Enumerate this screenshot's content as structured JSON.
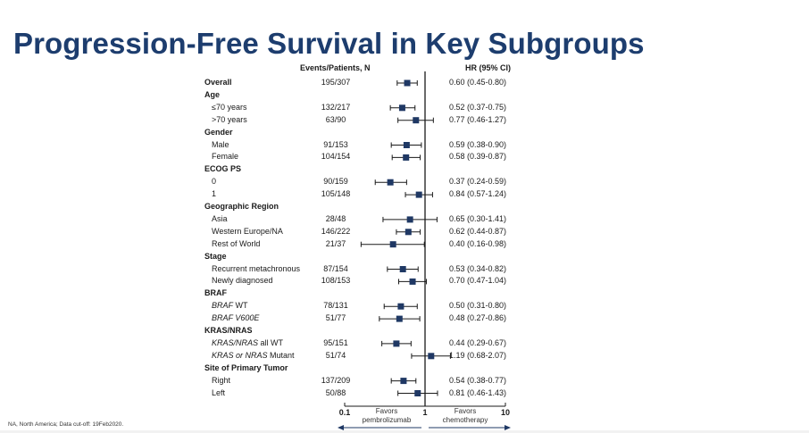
{
  "title": "Progression-Free Survival in Key Subgroups",
  "columns": {
    "events_header": "Events/Patients, N",
    "hr_header": "HR (95%  CI)"
  },
  "footnote": "NA, North America; Data cut-off:  19Feb2020.",
  "colors": {
    "title": "#1d3d6e",
    "marker": "#1f3864",
    "arrow": "#1f3864"
  },
  "chart_data": {
    "type": "forest",
    "x_scale": "log",
    "xlim": [
      0.1,
      10
    ],
    "x_ticks": [
      "0.1",
      "1",
      "10"
    ],
    "reference_line": 1,
    "favors_left": "Favors\npembrolizumab",
    "favors_right": "Favors\nchemotherapy",
    "rows": [
      {
        "kind": "item",
        "parts": [
          {
            "t": "Overall"
          }
        ],
        "bold": true,
        "events": "195/307",
        "hr": 0.6,
        "lo": 0.45,
        "hi": 0.8,
        "hr_text": "0.60 (0.45-0.80)"
      },
      {
        "kind": "group",
        "parts": [
          {
            "t": "Age"
          }
        ]
      },
      {
        "kind": "item",
        "parts": [
          {
            "t": "≤70 years"
          }
        ],
        "events": "132/217",
        "hr": 0.52,
        "lo": 0.37,
        "hi": 0.75,
        "hr_text": "0.52 (0.37-0.75)"
      },
      {
        "kind": "item",
        "parts": [
          {
            "t": ">70 years"
          }
        ],
        "events": "63/90",
        "hr": 0.77,
        "lo": 0.46,
        "hi": 1.27,
        "hr_text": "0.77 (0.46-1.27)"
      },
      {
        "kind": "group",
        "parts": [
          {
            "t": "Gender"
          }
        ]
      },
      {
        "kind": "item",
        "parts": [
          {
            "t": "Male"
          }
        ],
        "events": "91/153",
        "hr": 0.59,
        "lo": 0.38,
        "hi": 0.9,
        "hr_text": "0.59 (0.38-0.90)"
      },
      {
        "kind": "item",
        "parts": [
          {
            "t": "Female"
          }
        ],
        "events": "104/154",
        "hr": 0.58,
        "lo": 0.39,
        "hi": 0.87,
        "hr_text": "0.58 (0.39-0.87)"
      },
      {
        "kind": "group",
        "parts": [
          {
            "t": "ECOG PS"
          }
        ]
      },
      {
        "kind": "item",
        "parts": [
          {
            "t": "0"
          }
        ],
        "events": "90/159",
        "hr": 0.37,
        "lo": 0.24,
        "hi": 0.59,
        "hr_text": "0.37 (0.24-0.59)"
      },
      {
        "kind": "item",
        "parts": [
          {
            "t": "1"
          }
        ],
        "events": "105/148",
        "hr": 0.84,
        "lo": 0.57,
        "hi": 1.24,
        "hr_text": "0.84 (0.57-1.24)"
      },
      {
        "kind": "group",
        "parts": [
          {
            "t": "Geographic  Region"
          }
        ]
      },
      {
        "kind": "item",
        "parts": [
          {
            "t": "Asia"
          }
        ],
        "events": "28/48",
        "hr": 0.65,
        "lo": 0.3,
        "hi": 1.41,
        "hr_text": "0.65 (0.30-1.41)"
      },
      {
        "kind": "item",
        "parts": [
          {
            "t": "Western Europe/NA"
          }
        ],
        "events": "146/222",
        "hr": 0.62,
        "lo": 0.44,
        "hi": 0.87,
        "hr_text": "0.62 (0.44-0.87)"
      },
      {
        "kind": "item",
        "parts": [
          {
            "t": "Rest of  World"
          }
        ],
        "events": "21/37",
        "hr": 0.4,
        "lo": 0.16,
        "hi": 0.98,
        "hr_text": "0.40 (0.16-0.98)"
      },
      {
        "kind": "group",
        "parts": [
          {
            "t": "Stage"
          }
        ]
      },
      {
        "kind": "item",
        "parts": [
          {
            "t": "Recurrent metachronous"
          }
        ],
        "events": "87/154",
        "hr": 0.53,
        "lo": 0.34,
        "hi": 0.82,
        "hr_text": "0.53 (0.34-0.82)"
      },
      {
        "kind": "item",
        "parts": [
          {
            "t": "Newly diagnosed"
          }
        ],
        "events": "108/153",
        "hr": 0.7,
        "lo": 0.47,
        "hi": 1.04,
        "hr_text": "0.70 (0.47-1.04)"
      },
      {
        "kind": "group",
        "parts": [
          {
            "t": "BRAF"
          }
        ]
      },
      {
        "kind": "item",
        "parts": [
          {
            "t": "BRAF",
            "i": true
          },
          {
            "t": " WT"
          }
        ],
        "events": "78/131",
        "hr": 0.5,
        "lo": 0.31,
        "hi": 0.8,
        "hr_text": "0.50 (0.31-0.80)"
      },
      {
        "kind": "item",
        "parts": [
          {
            "t": "BRAF  V600E",
            "i": true
          }
        ],
        "events": "51/77",
        "hr": 0.48,
        "lo": 0.27,
        "hi": 0.86,
        "hr_text": "0.48 (0.27-0.86)"
      },
      {
        "kind": "group",
        "parts": [
          {
            "t": "KRAS/NRAS"
          }
        ]
      },
      {
        "kind": "item",
        "parts": [
          {
            "t": "KRAS/NRAS",
            "i": true
          },
          {
            "t": " all WT"
          }
        ],
        "events": "95/151",
        "hr": 0.44,
        "lo": 0.29,
        "hi": 0.67,
        "hr_text": "0.44 (0.29-0.67)"
      },
      {
        "kind": "item",
        "parts": [
          {
            "t": "KRAS or NRAS",
            "i": true
          },
          {
            "t": " Mutant"
          }
        ],
        "events": "51/74",
        "hr": 1.19,
        "lo": 0.68,
        "hi": 2.07,
        "hr_text": "1.19 (0.68-2.07)"
      },
      {
        "kind": "group",
        "parts": [
          {
            "t": "Site of  Primary  Tumor"
          }
        ]
      },
      {
        "kind": "item",
        "parts": [
          {
            "t": "Right"
          }
        ],
        "events": "137/209",
        "hr": 0.54,
        "lo": 0.38,
        "hi": 0.77,
        "hr_text": "0.54 (0.38-0.77)"
      },
      {
        "kind": "item",
        "parts": [
          {
            "t": "Left"
          }
        ],
        "events": "50/88",
        "hr": 0.81,
        "lo": 0.46,
        "hi": 1.43,
        "hr_text": "0.81 (0.46-1.43)"
      }
    ]
  }
}
